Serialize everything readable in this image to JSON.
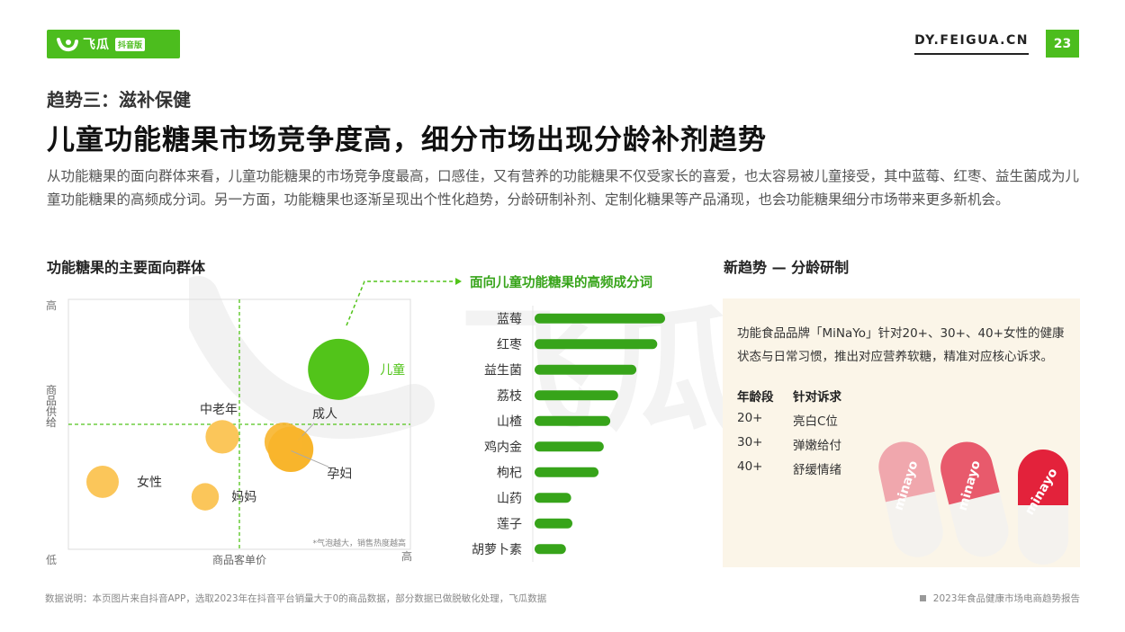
{
  "header": {
    "brand": "飞瓜",
    "brand_tag": "抖音版",
    "site": "DY.FEIGUA.CN",
    "page_number": "23"
  },
  "watermark": "飞瓜数据",
  "subtitle": "趋势三：滋补保健",
  "title": "儿童功能糖果市场竞争度高，细分市场出现分龄补剂趋势",
  "description": "从功能糖果的面向群体来看，儿童功能糖果的市场竞争度最高，口感佳，又有营养的功能糖果不仅受家长的喜爱，也太容易被儿童接受，其中蓝莓、红枣、益生菌成为儿童功能糖果的高频成分词。另一方面，功能糖果也逐渐呈现出个性化趋势，分龄研制补剂、定制化糖果等产品涌现，也会功能糖果细分市场带来更多新机会。",
  "left_section_title": "功能糖果的主要面向群体",
  "callout_label": "面向儿童功能糖果的高频成分词",
  "right_section_title": "新趋势 — 分龄研制",
  "chart_data": [
    {
      "type": "scatter",
      "title": "功能糖果的主要面向群体",
      "xlabel": "商品客单价",
      "ylabel": "商品供给",
      "x_low_label": "低",
      "x_high_label": "高",
      "y_low_label": "低",
      "y_high_label": "高",
      "xlim": [
        0,
        100
      ],
      "ylim": [
        0,
        100
      ],
      "note": "*气泡越大，销售热度越高",
      "points": [
        {
          "label": "儿童",
          "x": 79,
          "y": 72,
          "size": 100,
          "color": "#52c41a"
        },
        {
          "label": "中老年",
          "x": 45,
          "y": 45,
          "size": 30,
          "color": "#fbc65a"
        },
        {
          "label": "成人",
          "x": 65,
          "y": 40,
          "size": 55,
          "color": "#f8b52c"
        },
        {
          "label": "孕妇",
          "x": 63,
          "y": 43,
          "size": 40,
          "color": "#f8b52c"
        },
        {
          "label": "女性",
          "x": 10,
          "y": 27,
          "size": 28,
          "color": "#fbc65a"
        },
        {
          "label": "妈妈",
          "x": 40,
          "y": 21,
          "size": 20,
          "color": "#fbc65a"
        }
      ]
    },
    {
      "type": "bar",
      "orientation": "horizontal",
      "title": "面向儿童功能糖果的高频成分词",
      "categories": [
        "蓝莓",
        "红枣",
        "益生菌",
        "荔枝",
        "山楂",
        "鸡内金",
        "枸杞",
        "山药",
        "莲子",
        "胡萝卜素"
      ],
      "values": [
        100,
        94,
        78,
        64,
        58,
        53,
        49,
        28,
        29,
        24
      ],
      "color": "#37a41a"
    }
  ],
  "panel": {
    "intro": "功能食品品牌「MiNaYo」针对20+、30+、40+女性的健康状态与日常习惯，推出对应营养软糖，精准对应核心诉求。",
    "col1_header": "年龄段",
    "col2_header": "针对诉求",
    "rows": [
      {
        "age": "20+",
        "need": "亮白C位"
      },
      {
        "age": "30+",
        "need": "弹嫩给付"
      },
      {
        "age": "40+",
        "need": "舒缓情绪"
      }
    ],
    "product_brand": "minayo"
  },
  "footer": {
    "source_note": "数据说明：本页图片来自抖音APP，选取2023年在抖音平台销量大于0的商品数据，部分数据已做脱敏化处理，飞瓜数据",
    "report_name": "2023年食品健康市场电商趋势报告"
  }
}
